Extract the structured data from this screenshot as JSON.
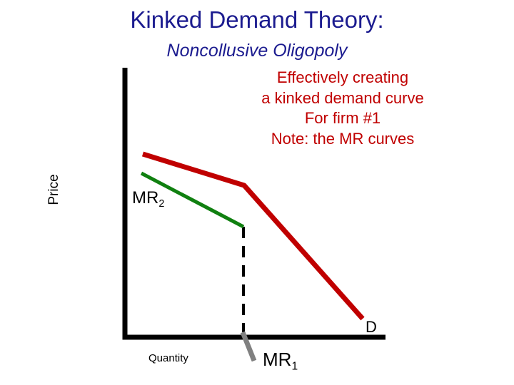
{
  "title": "Kinked Demand Theory:",
  "subtitle": "Noncollusive Oligopoly",
  "note_lines": [
    "Effectively creating",
    "a kinked demand curve",
    "For firm #1",
    "Note: the MR curves"
  ],
  "axes": {
    "y_label": "Price",
    "x_label": "Quantity"
  },
  "curves": {
    "mr2": {
      "name": "MR",
      "sub": "2",
      "color": "#108010"
    },
    "mr1": {
      "name": "MR",
      "sub": "1",
      "color": "#808080"
    },
    "d": {
      "name": "D",
      "color": "#c00000"
    }
  },
  "colors": {
    "title": "#1b1b8f",
    "note": "#c00000",
    "axis": "#000000",
    "dashed_line": "#000000"
  }
}
